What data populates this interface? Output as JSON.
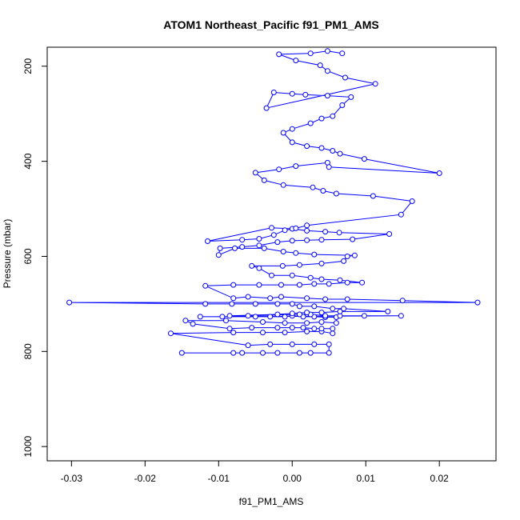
{
  "chart_data": {
    "type": "line",
    "title": "ATOM1 Northeast_Pacific f91_PM1_AMS",
    "xlabel": "f91_PM1_AMS",
    "ylabel": "Pressure (mbar)",
    "xlim": [
      -0.0333,
      0.0277
    ],
    "ylim": [
      1030,
      160
    ],
    "y_reversed": true,
    "xticks": [
      -0.03,
      -0.02,
      -0.01,
      0.0,
      0.01,
      0.02
    ],
    "xtick_labels": [
      "-0.03",
      "-0.02",
      "-0.01",
      "0.00",
      "0.01",
      "0.02"
    ],
    "yticks": [
      200,
      400,
      600,
      800,
      1000
    ],
    "ytick_labels": [
      "200",
      "400",
      "600",
      "800",
      "1000"
    ],
    "grid": false,
    "marker": "open-circle",
    "series_color": "#0000ff",
    "series": [
      {
        "points": [
          [
            -0.015,
            803
          ],
          [
            -0.008,
            803
          ],
          [
            -0.0068,
            803
          ],
          [
            -0.004,
            803
          ],
          [
            -0.002,
            803
          ],
          [
            0.001,
            803
          ],
          [
            0.0025,
            803
          ],
          [
            0.005,
            803
          ],
          [
            0.005,
            785
          ],
          [
            0.003,
            785
          ],
          [
            0.0,
            785
          ],
          [
            -0.003,
            785
          ],
          [
            -0.006,
            787
          ],
          [
            -0.0165,
            762
          ],
          [
            -0.008,
            760
          ],
          [
            -0.004,
            760
          ],
          [
            -0.001,
            760
          ],
          [
            0.002,
            758
          ],
          [
            0.004,
            758
          ],
          [
            0.0055,
            762
          ],
          [
            0.0055,
            752
          ],
          [
            0.004,
            752
          ],
          [
            0.003,
            752
          ],
          [
            0.0015,
            750
          ],
          [
            0.0,
            750
          ],
          [
            -0.002,
            750
          ],
          [
            -0.0055,
            750
          ],
          [
            -0.0085,
            752
          ],
          [
            -0.0135,
            742
          ],
          [
            -0.0145,
            735
          ],
          [
            -0.009,
            735
          ],
          [
            -0.004,
            738
          ],
          [
            -0.001,
            740
          ],
          [
            0.002,
            740
          ],
          [
            0.004,
            738
          ],
          [
            0.006,
            740
          ],
          [
            0.006,
            728
          ],
          [
            0.0045,
            728
          ],
          [
            0.003,
            727
          ],
          [
            0.0015,
            727
          ],
          [
            0.0,
            725
          ],
          [
            -0.001,
            727
          ],
          [
            -0.003,
            727
          ],
          [
            -0.005,
            727
          ],
          [
            -0.0095,
            727
          ],
          [
            -0.0125,
            727
          ],
          [
            0.0148,
            725
          ],
          [
            0.0098,
            725
          ],
          [
            0.0065,
            725
          ],
          [
            0.0045,
            725
          ],
          [
            0.0025,
            722
          ],
          [
            0.001,
            722
          ],
          [
            -0.006,
            725
          ],
          [
            -0.0085,
            725
          ],
          [
            -0.002,
            722
          ],
          [
            0.0,
            720
          ],
          [
            0.002,
            718
          ],
          [
            0.004,
            718
          ],
          [
            0.0065,
            716
          ],
          [
            0.013,
            716
          ],
          [
            0.007,
            710
          ],
          [
            0.0055,
            710
          ],
          [
            0.003,
            705
          ],
          [
            0.001,
            705
          ],
          [
            0.0,
            700
          ],
          [
            -0.002,
            700
          ],
          [
            -0.005,
            700
          ],
          [
            -0.0082,
            700
          ],
          [
            -0.0118,
            700
          ],
          [
            -0.0303,
            697
          ],
          [
            0.0252,
            697
          ],
          [
            0.015,
            693
          ],
          [
            0.0075,
            690
          ],
          [
            0.0045,
            690
          ],
          [
            0.002,
            688
          ],
          [
            -0.0015,
            685
          ],
          [
            -0.003,
            688
          ],
          [
            -0.006,
            685
          ],
          [
            -0.008,
            688
          ],
          [
            -0.0118,
            662
          ],
          [
            -0.008,
            660
          ],
          [
            -0.0045,
            660
          ],
          [
            -0.0015,
            660
          ],
          [
            0.001,
            660
          ],
          [
            0.003,
            658
          ],
          [
            0.005,
            658
          ],
          [
            0.0075,
            655
          ],
          [
            0.0095,
            655
          ],
          [
            0.0065,
            650
          ],
          [
            0.004,
            648
          ],
          [
            0.0025,
            645
          ],
          [
            0.0,
            640
          ],
          [
            -0.0028,
            640
          ],
          [
            -0.0045,
            625
          ],
          [
            -0.0055,
            620
          ],
          [
            -0.0013,
            620
          ],
          [
            0.001,
            618
          ],
          [
            0.004,
            615
          ],
          [
            0.007,
            610
          ],
          [
            0.0075,
            600
          ],
          [
            0.0085,
            598
          ],
          [
            0.003,
            596
          ],
          [
            0.0005,
            593
          ],
          [
            -0.0012,
            590
          ],
          [
            -0.0038,
            583
          ],
          [
            -0.0078,
            583
          ],
          [
            -0.01,
            597
          ],
          [
            -0.0098,
            583
          ],
          [
            -0.0068,
            580
          ],
          [
            -0.0045,
            577
          ],
          [
            -0.002,
            570
          ],
          [
            0.0,
            567
          ],
          [
            0.002,
            566
          ],
          [
            0.004,
            565
          ],
          [
            0.0082,
            564
          ],
          [
            0.0132,
            553
          ],
          [
            0.0064,
            550
          ],
          [
            0.0045,
            548
          ],
          [
            0.002,
            546
          ],
          [
            0.0,
            542
          ],
          [
            -0.0028,
            540
          ],
          [
            -0.0115,
            568
          ],
          [
            -0.0068,
            565
          ],
          [
            -0.0045,
            563
          ],
          [
            -0.0025,
            555
          ],
          [
            -0.001,
            545
          ],
          [
            0.0005,
            541
          ],
          [
            0.002,
            535
          ],
          [
            0.0148,
            512
          ],
          [
            0.0163,
            484
          ],
          [
            0.011,
            473
          ],
          [
            0.006,
            468
          ],
          [
            0.0042,
            462
          ],
          [
            0.0028,
            455
          ],
          [
            -0.0012,
            450
          ],
          [
            -0.0038,
            440
          ],
          [
            -0.005,
            424
          ],
          [
            -0.0018,
            417
          ],
          [
            0.0005,
            410
          ],
          [
            0.0048,
            403
          ],
          [
            0.005,
            412
          ],
          [
            0.02,
            425
          ],
          [
            0.0098,
            395
          ],
          [
            0.0065,
            384
          ],
          [
            0.0055,
            378
          ],
          [
            0.004,
            372
          ],
          [
            0.002,
            368
          ],
          [
            0.0,
            360
          ],
          [
            -0.0012,
            340
          ],
          [
            0.0,
            332
          ],
          [
            0.0025,
            320
          ],
          [
            0.004,
            310
          ],
          [
            0.0055,
            305
          ],
          [
            0.0068,
            282
          ],
          [
            0.008,
            265
          ],
          [
            0.0048,
            262
          ],
          [
            0.0018,
            260
          ],
          [
            0.0,
            258
          ],
          [
            -0.0025,
            255
          ],
          [
            -0.0035,
            288
          ],
          [
            0.0113,
            237
          ],
          [
            0.0072,
            224
          ],
          [
            0.0048,
            210
          ],
          [
            0.0038,
            198
          ],
          [
            0.0005,
            188
          ],
          [
            -0.0018,
            175
          ],
          [
            0.0025,
            173
          ],
          [
            0.0048,
            168
          ],
          [
            0.0068,
            173
          ]
        ]
      }
    ]
  }
}
